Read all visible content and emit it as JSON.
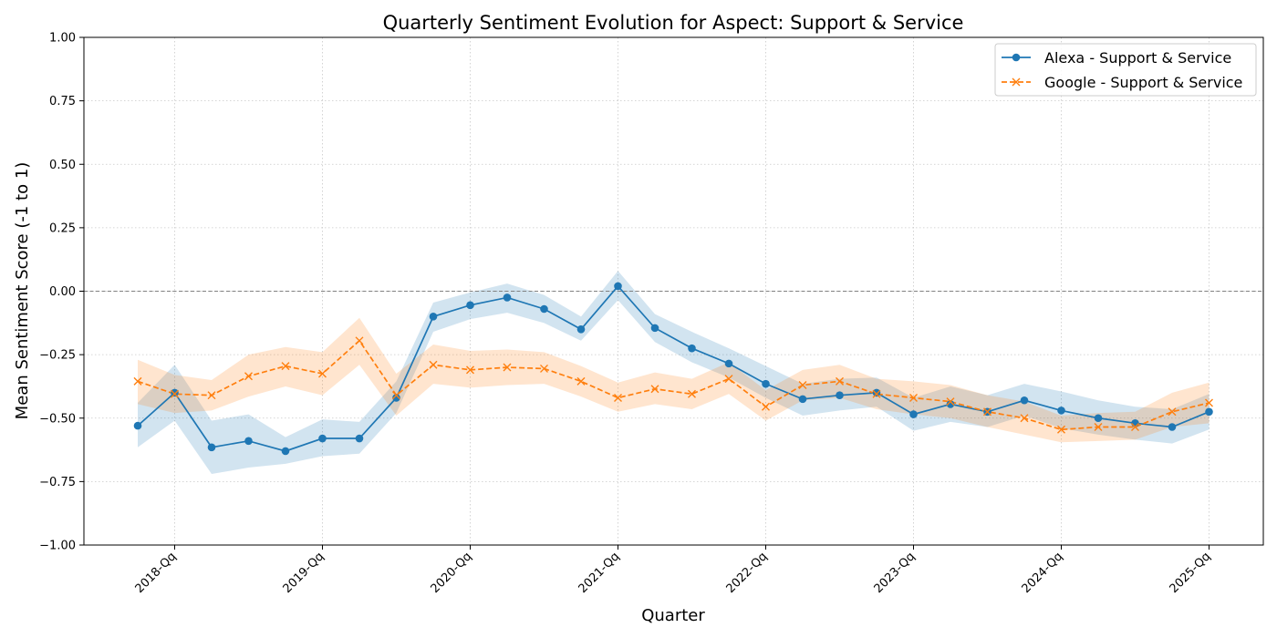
{
  "chart_data": {
    "type": "line",
    "title": "Quarterly Sentiment Evolution for Aspect: Support & Service",
    "xlabel": "Quarter",
    "ylabel": "Mean Sentiment Score (-1 to 1)",
    "ylim": [
      -1.0,
      1.0
    ],
    "y_ticks": [
      -1.0,
      -0.75,
      -0.5,
      -0.25,
      0.0,
      0.25,
      0.5,
      0.75,
      1.0
    ],
    "y_tick_labels": [
      "−1.00",
      "−0.75",
      "−0.50",
      "−0.25",
      "0.00",
      "0.25",
      "0.50",
      "0.75",
      "1.00"
    ],
    "x_tick_labels": [
      "2018-Qq",
      "2019-Qq",
      "2020-Qq",
      "2021-Qq",
      "2022-Qq",
      "2023-Qq",
      "2024-Qq",
      "2025-Qq"
    ],
    "x_tick_quarters": [
      "2018-Q1",
      "2019-Q1",
      "2020-Q1",
      "2021-Q1",
      "2022-Q1",
      "2023-Q1",
      "2024-Q1",
      "2025-Q1"
    ],
    "x": [
      "2017-Q4",
      "2018-Q1",
      "2018-Q2",
      "2018-Q3",
      "2018-Q4",
      "2019-Q1",
      "2019-Q2",
      "2019-Q3",
      "2019-Q4",
      "2020-Q1",
      "2020-Q2",
      "2020-Q3",
      "2020-Q4",
      "2021-Q1",
      "2021-Q2",
      "2021-Q3",
      "2021-Q4",
      "2022-Q1",
      "2022-Q2",
      "2022-Q3",
      "2022-Q4",
      "2023-Q1",
      "2023-Q2",
      "2023-Q3",
      "2023-Q4",
      "2024-Q1",
      "2024-Q2",
      "2024-Q3",
      "2024-Q4",
      "2025-Q1"
    ],
    "reference_line": 0.0,
    "grid": true,
    "legend_position": "top-right",
    "series": [
      {
        "name": "Alexa - Support & Service",
        "color": "#1f77b4",
        "marker": "circle",
        "line_style": "solid",
        "values": [
          -0.53,
          -0.4,
          -0.615,
          -0.59,
          -0.63,
          -0.58,
          -0.58,
          -0.42,
          -0.1,
          -0.055,
          -0.025,
          -0.07,
          -0.15,
          0.02,
          -0.145,
          -0.225,
          -0.285,
          -0.365,
          -0.425,
          -0.41,
          -0.4,
          -0.485,
          -0.445,
          -0.475,
          -0.43,
          -0.47,
          -0.5,
          -0.52,
          -0.535,
          -0.475
        ],
        "lower": [
          -0.615,
          -0.51,
          -0.72,
          -0.695,
          -0.68,
          -0.65,
          -0.64,
          -0.48,
          -0.16,
          -0.11,
          -0.085,
          -0.125,
          -0.195,
          -0.035,
          -0.2,
          -0.28,
          -0.34,
          -0.42,
          -0.49,
          -0.47,
          -0.455,
          -0.55,
          -0.515,
          -0.535,
          -0.49,
          -0.54,
          -0.565,
          -0.585,
          -0.6,
          -0.545
        ],
        "upper": [
          -0.44,
          -0.29,
          -0.51,
          -0.485,
          -0.575,
          -0.505,
          -0.515,
          -0.355,
          -0.045,
          -0.005,
          0.03,
          -0.015,
          -0.1,
          0.08,
          -0.09,
          -0.16,
          -0.225,
          -0.295,
          -0.365,
          -0.345,
          -0.34,
          -0.42,
          -0.375,
          -0.41,
          -0.365,
          -0.395,
          -0.43,
          -0.455,
          -0.465,
          -0.405
        ]
      },
      {
        "name": "Google - Support & Service",
        "color": "#ff7f0e",
        "marker": "x",
        "line_style": "dashed",
        "values": [
          -0.355,
          -0.405,
          -0.41,
          -0.335,
          -0.295,
          -0.325,
          -0.195,
          -0.41,
          -0.29,
          -0.31,
          -0.3,
          -0.305,
          -0.355,
          -0.42,
          -0.385,
          -0.405,
          -0.345,
          -0.455,
          -0.37,
          -0.355,
          -0.405,
          -0.42,
          -0.435,
          -0.475,
          -0.5,
          -0.545,
          -0.535,
          -0.535,
          -0.475,
          -0.44
        ],
        "lower": [
          -0.445,
          -0.48,
          -0.47,
          -0.415,
          -0.375,
          -0.41,
          -0.29,
          -0.49,
          -0.365,
          -0.38,
          -0.37,
          -0.365,
          -0.415,
          -0.475,
          -0.445,
          -0.465,
          -0.405,
          -0.51,
          -0.43,
          -0.42,
          -0.465,
          -0.485,
          -0.5,
          -0.535,
          -0.565,
          -0.595,
          -0.59,
          -0.585,
          -0.535,
          -0.52
        ],
        "upper": [
          -0.27,
          -0.33,
          -0.35,
          -0.25,
          -0.22,
          -0.24,
          -0.105,
          -0.325,
          -0.21,
          -0.235,
          -0.23,
          -0.24,
          -0.295,
          -0.36,
          -0.32,
          -0.345,
          -0.28,
          -0.39,
          -0.31,
          -0.29,
          -0.345,
          -0.355,
          -0.37,
          -0.41,
          -0.435,
          -0.49,
          -0.48,
          -0.475,
          -0.4,
          -0.36
        ]
      }
    ]
  }
}
